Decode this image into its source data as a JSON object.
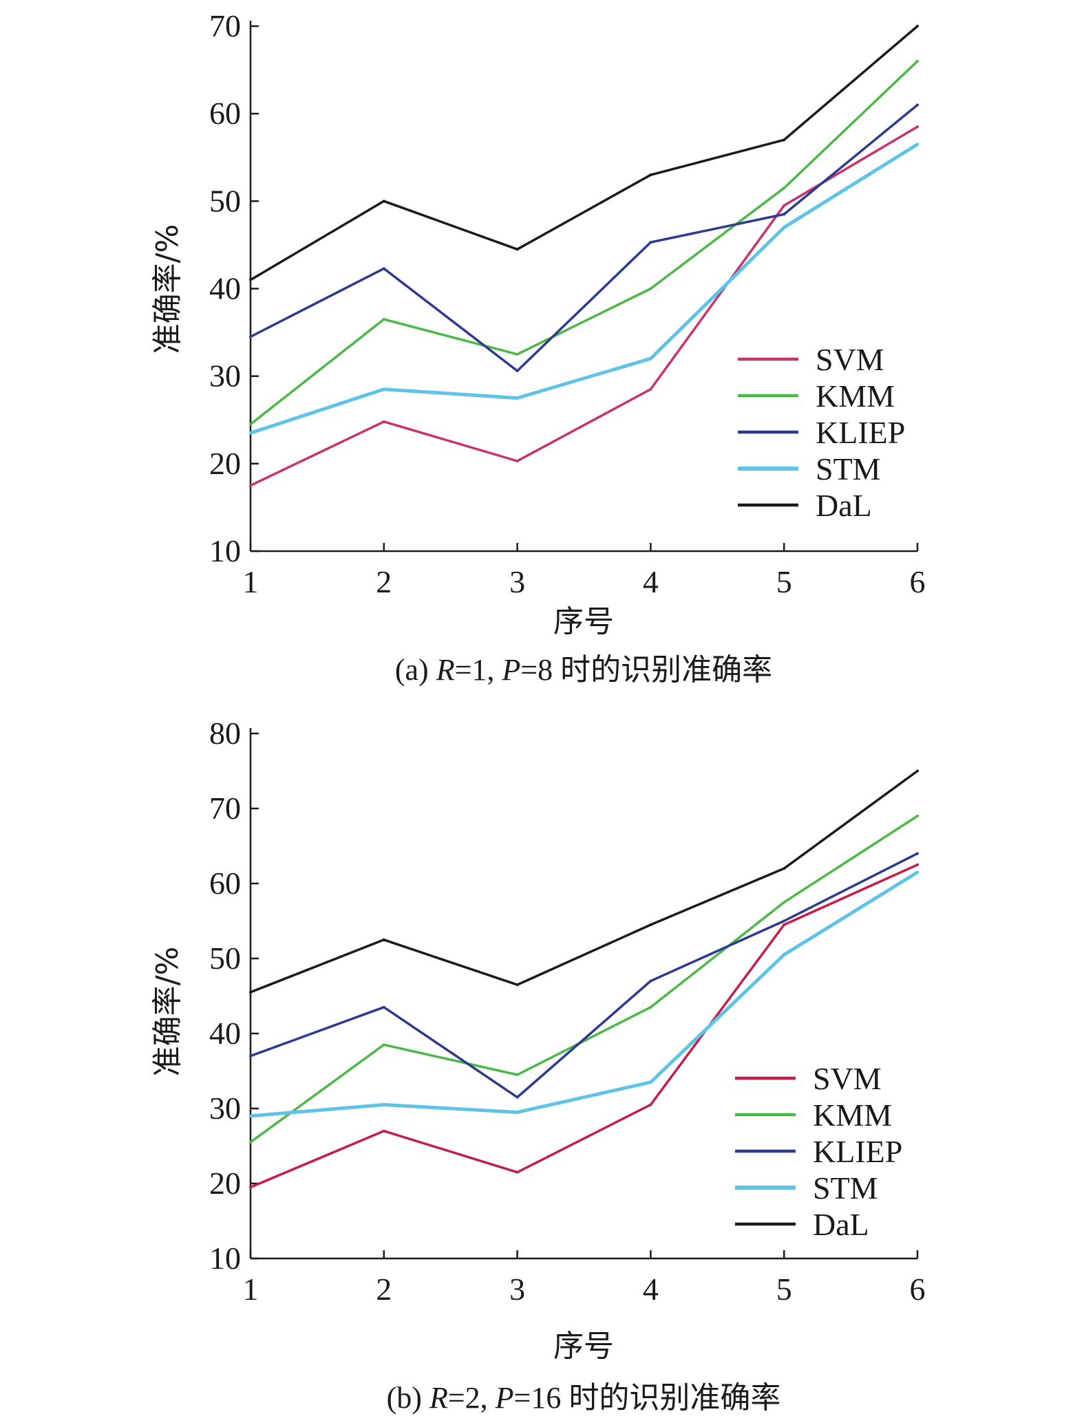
{
  "chart_data": [
    {
      "type": "line",
      "caption": {
        "prefix": "(a) ",
        "r_var": "R",
        "r_eq": "=1, ",
        "p_var": "P",
        "p_eq": "=8 时的识别准确率"
      },
      "xlabel": "序号",
      "ylabel": "准确率/%",
      "x": [
        1,
        2,
        3,
        4,
        5,
        6
      ],
      "ylim": [
        10,
        70
      ],
      "yticks": [
        10,
        20,
        30,
        40,
        50,
        60,
        70
      ],
      "legend_position": "right",
      "series": [
        {
          "name": "SVM",
          "color": "#c8336a",
          "values": [
            17.5,
            24.8,
            20.3,
            28.5,
            49.5,
            58.5
          ]
        },
        {
          "name": "KMM",
          "color": "#4cb848",
          "values": [
            24.5,
            36.5,
            32.5,
            40.0,
            51.5,
            66.0
          ]
        },
        {
          "name": "KLIEP",
          "color": "#2e3a8f",
          "values": [
            34.5,
            42.3,
            30.6,
            45.3,
            48.5,
            61.0
          ]
        },
        {
          "name": "STM",
          "color": "#5ec3e6",
          "values": [
            23.5,
            28.5,
            27.5,
            32.0,
            47.0,
            56.5
          ]
        },
        {
          "name": "DaL",
          "color": "#1a1a1a",
          "values": [
            41.0,
            50.0,
            44.5,
            53.0,
            57.0,
            70.0
          ]
        }
      ]
    },
    {
      "type": "line",
      "caption": {
        "prefix": "(b) ",
        "r_var": "R",
        "r_eq": "=2, ",
        "p_var": "P",
        "p_eq": "=16 时的识别准确率"
      },
      "xlabel": "序号",
      "ylabel": "准确率/%",
      "x": [
        1,
        2,
        3,
        4,
        5,
        6
      ],
      "ylim": [
        10,
        80
      ],
      "yticks": [
        10,
        20,
        30,
        40,
        50,
        60,
        70,
        80
      ],
      "legend_position": "right",
      "series": [
        {
          "name": "SVM",
          "color": "#c41d4a",
          "values": [
            19.5,
            27.0,
            21.5,
            30.5,
            54.5,
            62.5
          ]
        },
        {
          "name": "KMM",
          "color": "#4cb848",
          "values": [
            25.5,
            38.5,
            34.5,
            43.5,
            57.5,
            69.0
          ]
        },
        {
          "name": "KLIEP",
          "color": "#2e3a8f",
          "values": [
            37.0,
            43.5,
            31.5,
            47.0,
            55.0,
            64.0
          ]
        },
        {
          "name": "STM",
          "color": "#5ec3e6",
          "values": [
            29.0,
            30.5,
            29.5,
            33.5,
            50.5,
            61.5
          ]
        },
        {
          "name": "DaL",
          "color": "#1a1a1a",
          "values": [
            45.5,
            52.5,
            46.5,
            54.5,
            62.0,
            75.0
          ]
        }
      ]
    }
  ]
}
